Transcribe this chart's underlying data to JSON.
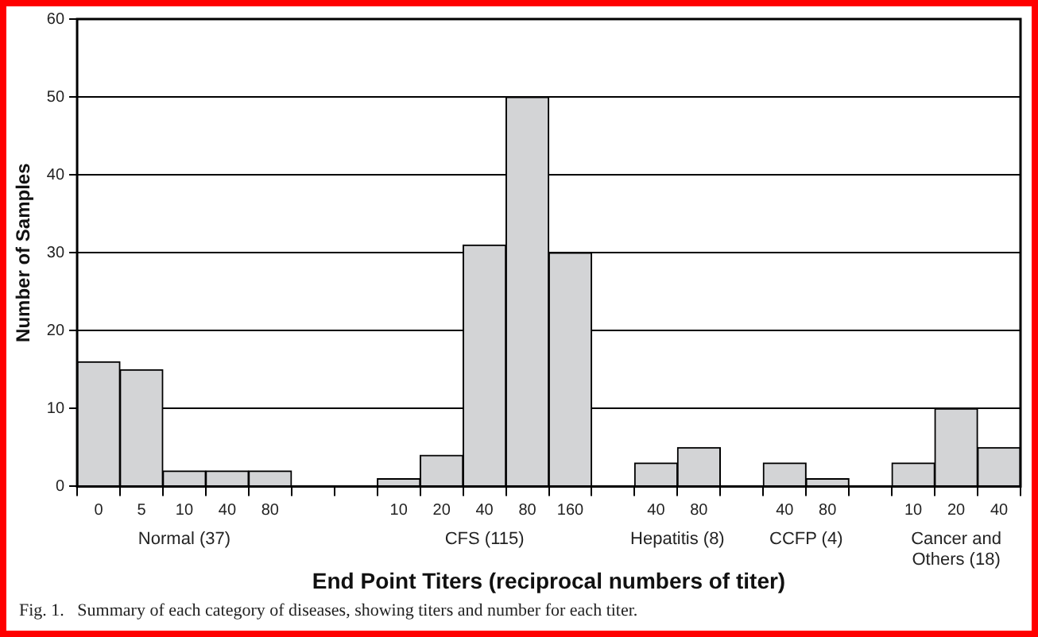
{
  "chart_data": {
    "type": "bar",
    "categories": [
      "0",
      "5",
      "10",
      "40",
      "80",
      null,
      null,
      "10",
      "20",
      "40",
      "80",
      "160",
      null,
      "40",
      "80",
      null,
      "40",
      "80",
      null,
      "10",
      "20",
      "40"
    ],
    "values": [
      16,
      15,
      2,
      2,
      2,
      null,
      null,
      1,
      4,
      31,
      50,
      30,
      null,
      3,
      5,
      null,
      3,
      1,
      null,
      3,
      10,
      5
    ],
    "color": "#d3d4d6",
    "xlabel": "End Point Titers (reciprocal numbers of titer)",
    "ylabel": "Number of Samples",
    "ylim": [
      0,
      60
    ],
    "yticks": [
      0,
      10,
      20,
      30,
      40,
      50,
      60
    ],
    "grid": "y",
    "annotations": [
      "Normal (37)",
      "CFS (115)",
      "Hepatitis (8)",
      "CCFP (4)",
      "Cancer and Others (18)",
      "Fig. 1.   Summary of each category of diseases, showing titers and number for each titer."
    ]
  }
}
